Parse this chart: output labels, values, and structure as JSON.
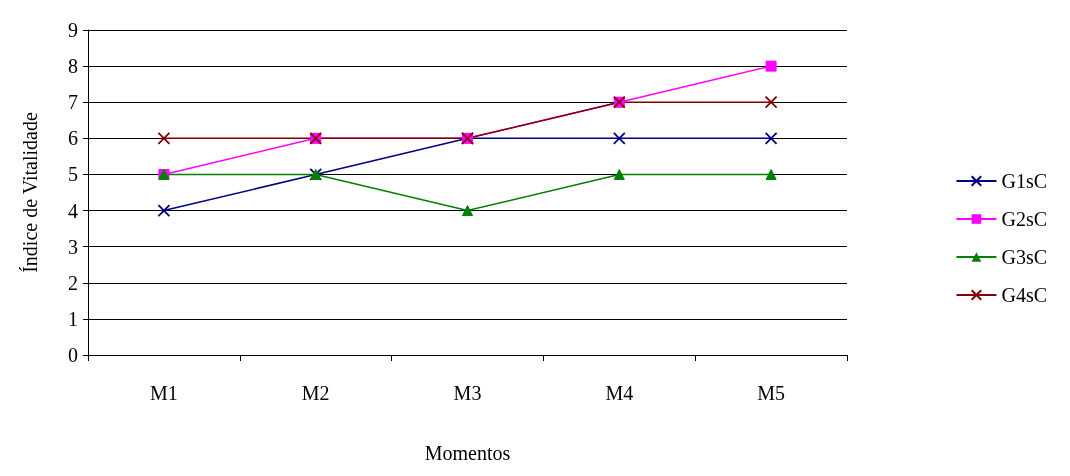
{
  "chart_data": {
    "type": "line",
    "xlabel": "Momentos",
    "ylabel": "Índice de Vitalidade",
    "categories": [
      "M1",
      "M2",
      "M3",
      "M4",
      "M5"
    ],
    "ylim": [
      0,
      9
    ],
    "yticks": [
      0,
      1,
      2,
      3,
      4,
      5,
      6,
      7,
      8,
      9
    ],
    "grid": "y",
    "legend": "right",
    "series": [
      {
        "name": "G1sC",
        "color": "#000080",
        "marker": "cross",
        "values": [
          4,
          5,
          6,
          6,
          6
        ]
      },
      {
        "name": "G2sC",
        "color": "#ff00ff",
        "marker": "square",
        "values": [
          5,
          6,
          6,
          7,
          8
        ]
      },
      {
        "name": "G3sC",
        "color": "#008000",
        "marker": "triangle",
        "values": [
          5,
          5,
          4,
          5,
          5
        ]
      },
      {
        "name": "G4sC",
        "color": "#800000",
        "marker": "cross",
        "values": [
          6,
          6,
          6,
          7,
          7
        ]
      }
    ]
  }
}
